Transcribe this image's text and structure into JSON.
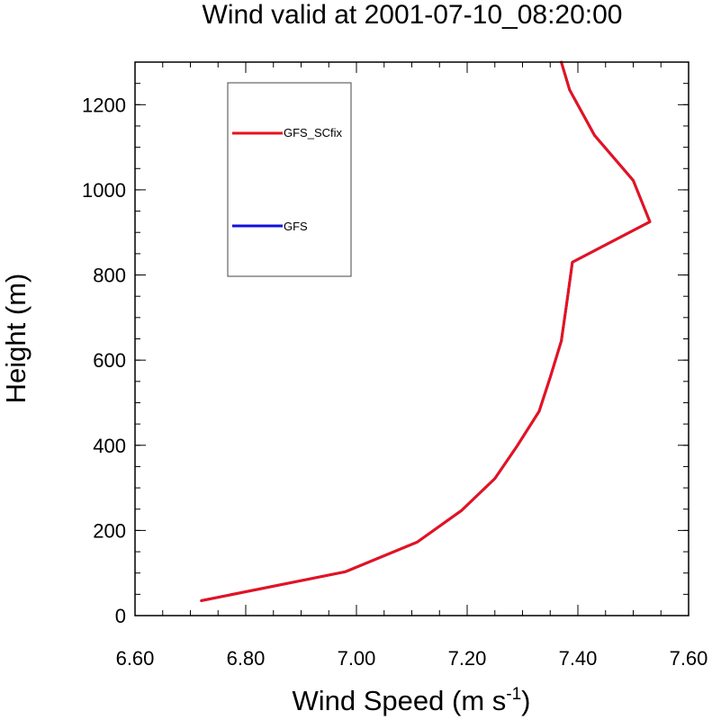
{
  "chart_data": {
    "type": "line",
    "title": "Wind valid at 2001-07-10_08:20:00",
    "xlabel_main": "Wind Speed (m s",
    "xlabel_sup": "-1",
    "xlabel_close": ")",
    "ylabel": "Height (m)",
    "xlim": [
      6.6,
      7.6
    ],
    "ylim": [
      0,
      1300
    ],
    "xticks": [
      "6.60",
      "6.80",
      "7.00",
      "7.20",
      "7.40",
      "7.60"
    ],
    "xtick_values": [
      6.6,
      6.8,
      7.0,
      7.2,
      7.4,
      7.6
    ],
    "yticks": [
      "0",
      "200",
      "400",
      "600",
      "800",
      "1000",
      "1200"
    ],
    "ytick_values": [
      0,
      200,
      400,
      600,
      800,
      1000,
      1200
    ],
    "legend_placement": "top-left",
    "series": [
      {
        "name": "GFS_SCfix",
        "color": "#e8121c",
        "x": [
          6.72,
          6.98,
          7.11,
          7.19,
          7.25,
          7.29,
          7.33,
          7.35,
          7.37,
          7.38,
          7.39,
          7.53,
          7.5,
          7.43,
          7.385,
          7.37
        ],
        "y": [
          35,
          103,
          173,
          247,
          322,
          398,
          480,
          560,
          645,
          735,
          830,
          925,
          1022,
          1128,
          1235,
          1300
        ]
      },
      {
        "name": "GFS",
        "color": "#1010e0",
        "x": [
          6.72,
          6.98,
          7.11,
          7.19,
          7.25,
          7.29,
          7.33,
          7.35,
          7.37,
          7.38,
          7.39,
          7.53,
          7.5,
          7.43,
          7.385,
          7.37
        ],
        "y": [
          35,
          103,
          173,
          247,
          322,
          398,
          480,
          560,
          645,
          735,
          830,
          925,
          1022,
          1128,
          1235,
          1300
        ]
      }
    ]
  }
}
